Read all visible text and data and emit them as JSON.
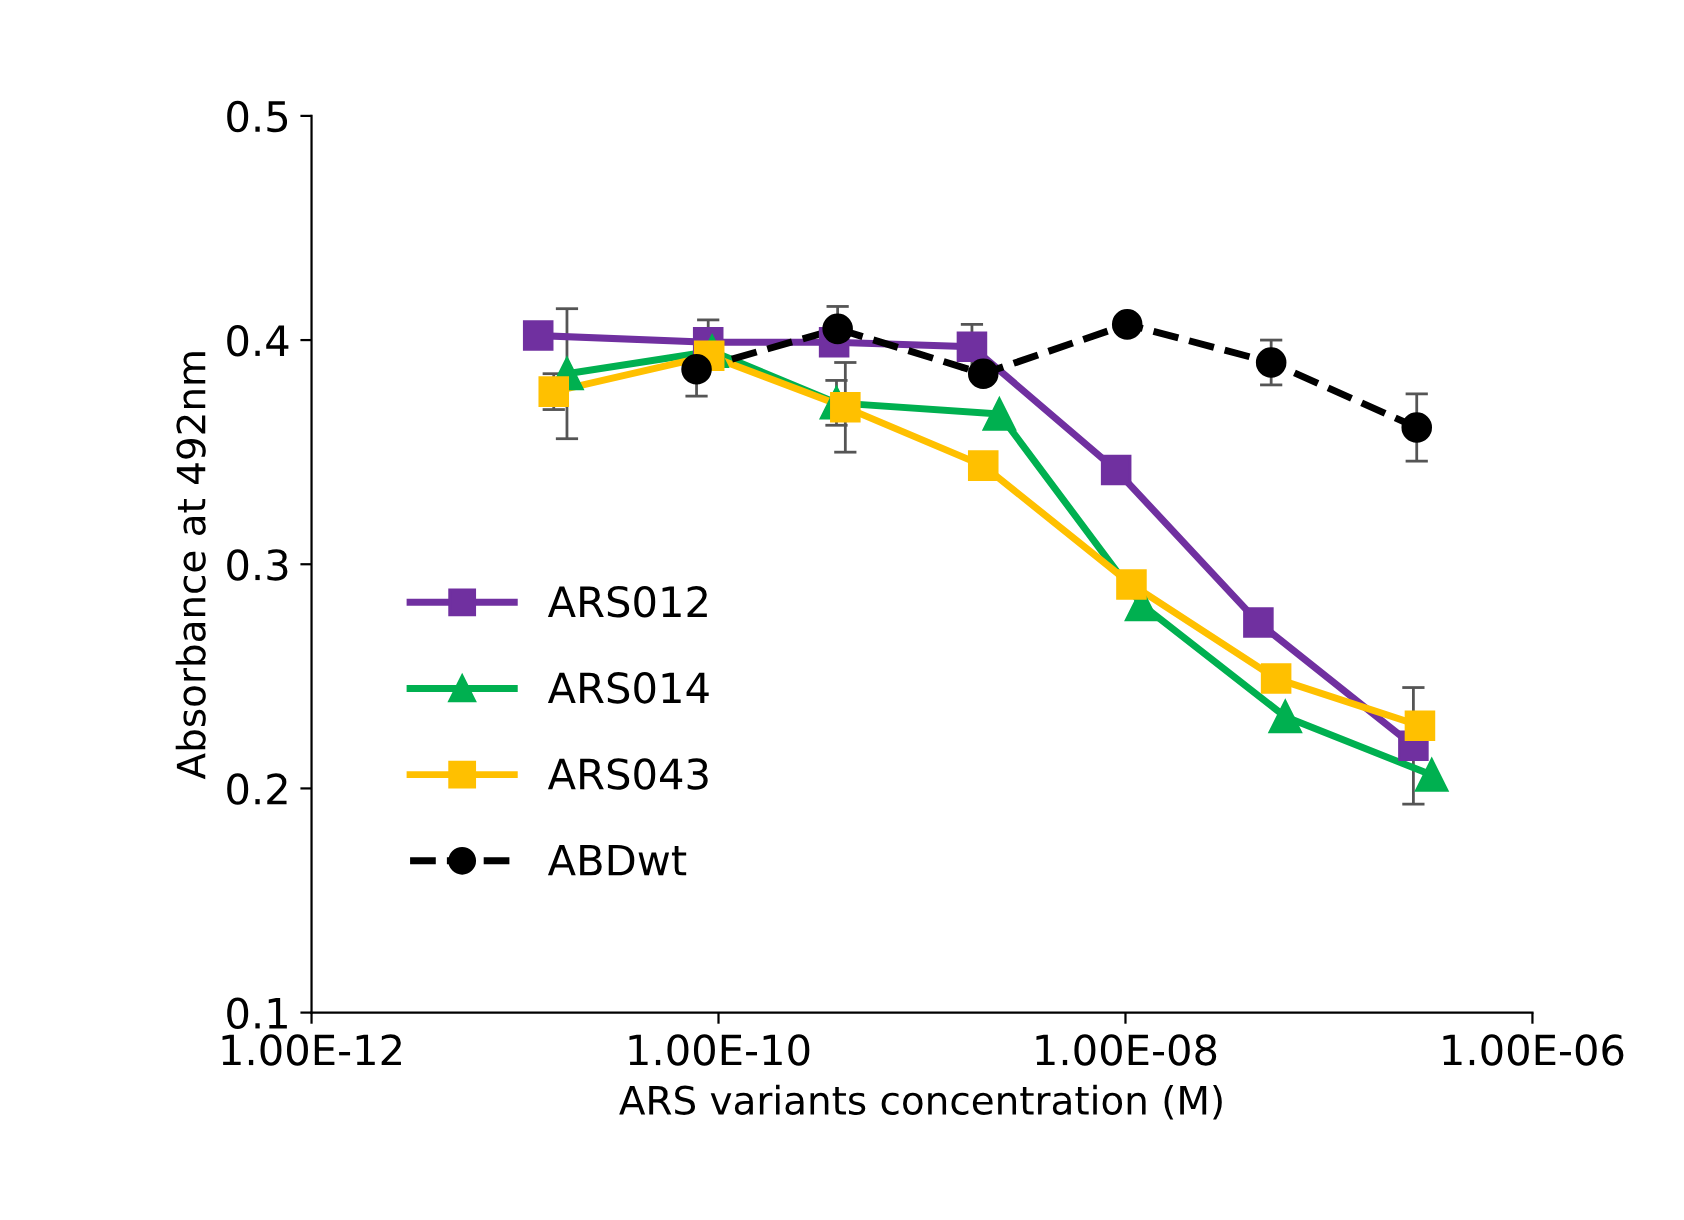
{
  "chart_data": {
    "type": "line",
    "xlabel": "ARS variants concentration (M)",
    "ylabel": "Absorbance at 492nm",
    "log": "x",
    "xlim": [
      1e-12,
      1e-06
    ],
    "xticks": [
      {
        "value": 1e-12,
        "label": "1.00E-12"
      },
      {
        "value": 1e-10,
        "label": "1.00E-10"
      },
      {
        "value": 1e-08,
        "label": "1.00E-08"
      },
      {
        "value": 1e-06,
        "label": "1.00E-06"
      }
    ],
    "ylim": [
      0.1,
      0.5
    ],
    "yticks": [
      0.1,
      0.2,
      0.3,
      0.4,
      0.5
    ],
    "grid": false,
    "legend": "left",
    "series": [
      {
        "name": "ARS012",
        "color": "#7030a0",
        "marker": "square",
        "line_style": "solid",
        "x": [
          1.3e-11,
          8.9e-11,
          3.7e-10,
          1.76e-09,
          9e-09,
          4.5e-08,
          2.6e-07
        ],
        "values": [
          0.402,
          0.399,
          0.399,
          0.397,
          0.342,
          0.274,
          0.219
        ],
        "errors": [
          null,
          0.01,
          null,
          0.01,
          null,
          null,
          0.026
        ]
      },
      {
        "name": "ARS014",
        "color": "#00b050",
        "marker": "triangle",
        "line_style": "solid",
        "x": [
          1.8e-11,
          9.3e-11,
          3.8e-10,
          2.4e-09,
          1.2e-08,
          6.1e-08,
          3.2e-07
        ],
        "values": [
          0.385,
          0.395,
          0.372,
          0.367,
          0.282,
          0.232,
          0.206
        ],
        "errors": [
          0.029,
          null,
          0.01,
          null,
          null,
          null,
          null
        ]
      },
      {
        "name": "ARS043",
        "color": "#ffc000",
        "marker": "square",
        "line_style": "solid",
        "x": [
          1.55e-11,
          9e-11,
          4.2e-10,
          2e-09,
          1.07e-08,
          5.5e-08,
          2.8e-07
        ],
        "values": [
          0.377,
          0.393,
          0.37,
          0.344,
          0.291,
          0.249,
          0.228
        ],
        "errors": [
          0.008,
          null,
          0.02,
          null,
          null,
          null,
          null
        ]
      },
      {
        "name": "ABDwt",
        "color": "#000000",
        "marker": "circle",
        "line_style": "dashed",
        "x": [
          7.8e-11,
          3.85e-10,
          2e-09,
          1.02e-08,
          5.2e-08,
          2.7e-07
        ],
        "values": [
          0.387,
          0.405,
          0.385,
          0.407,
          0.39,
          0.361
        ],
        "errors": [
          0.012,
          0.01,
          null,
          null,
          0.01,
          0.015
        ]
      }
    ]
  }
}
